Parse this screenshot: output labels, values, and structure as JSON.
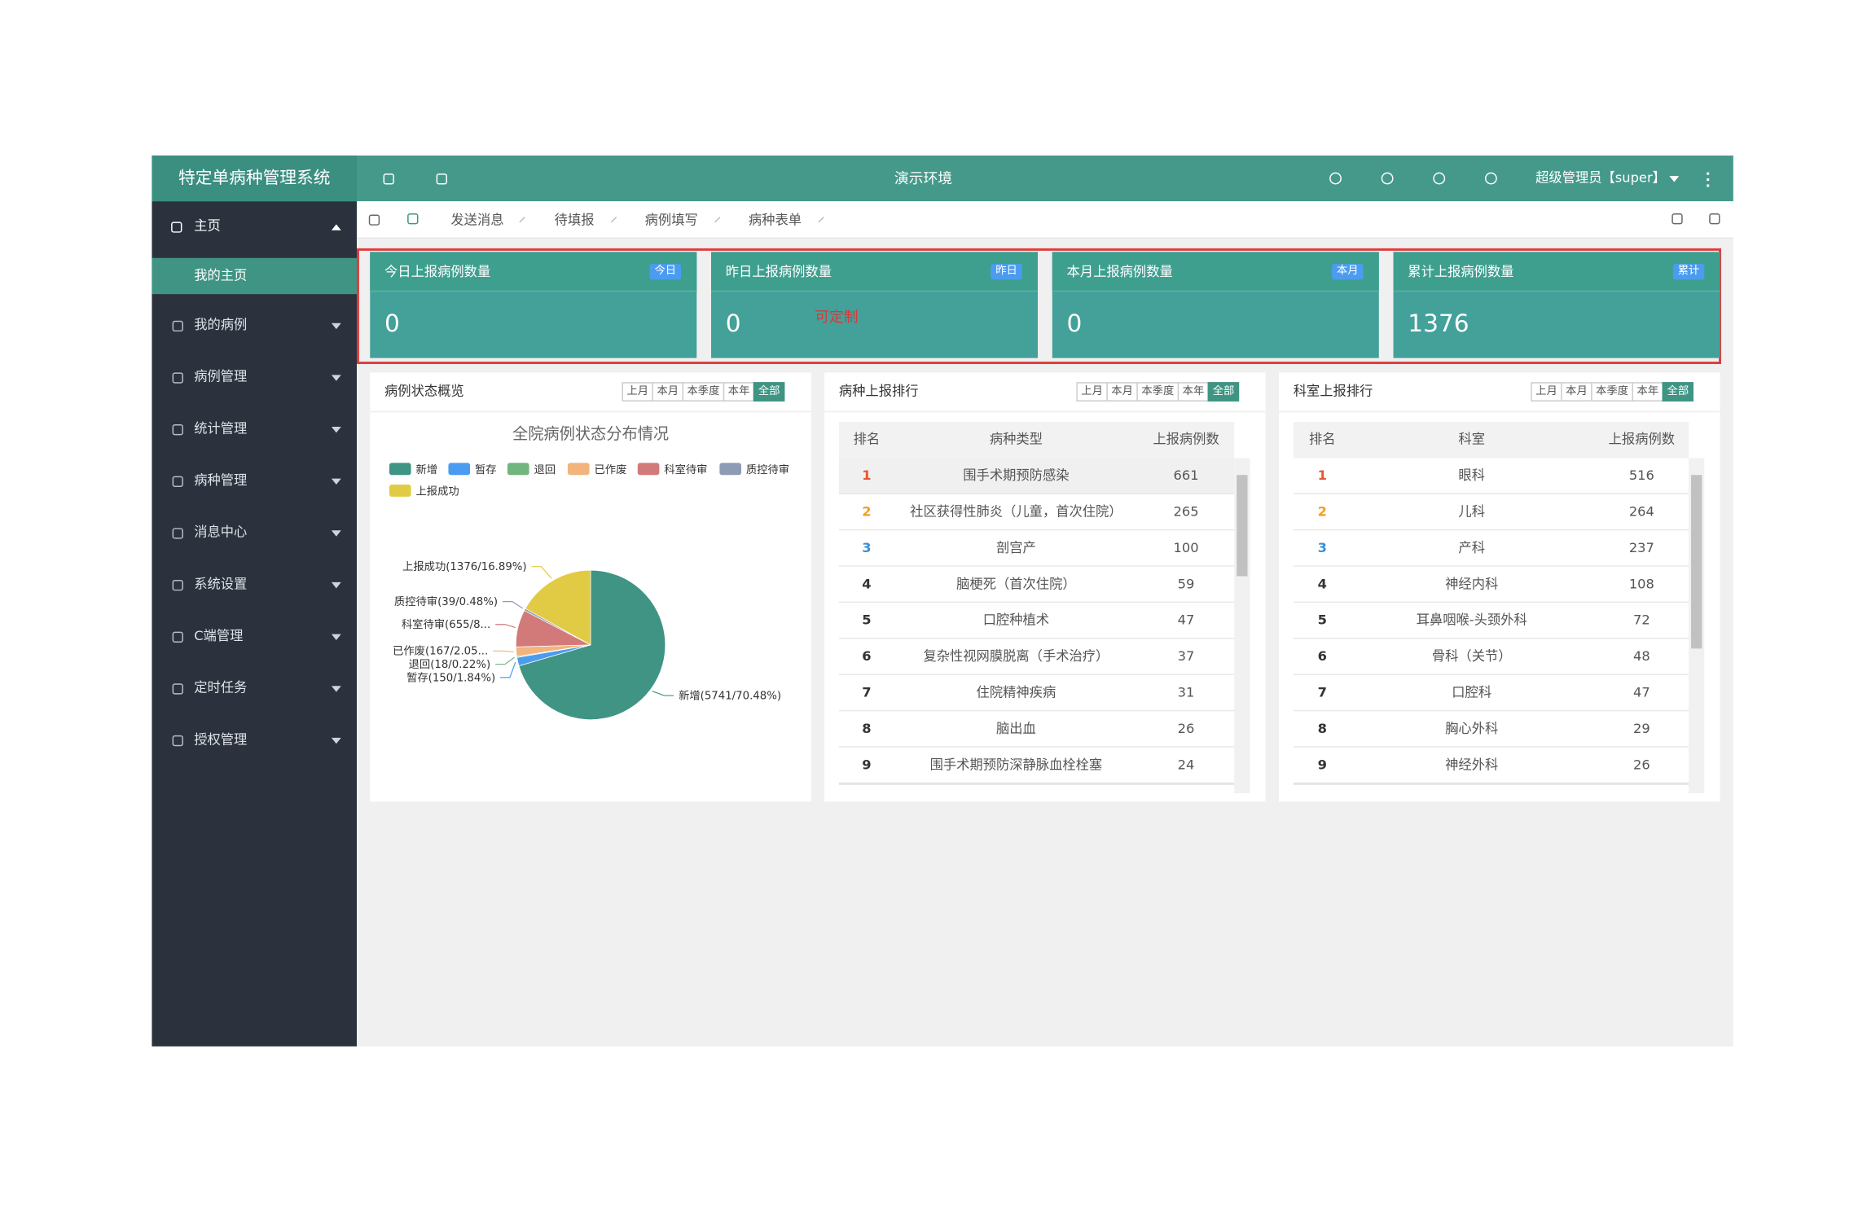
{
  "header": {
    "title": "特定单病种管理系统",
    "env": "演示环境",
    "user": "超级管理员【super】"
  },
  "sidebar": {
    "home": "主页",
    "home_children": [
      "我的主页"
    ],
    "items": [
      "我的病例",
      "病例管理",
      "统计管理",
      "病种管理",
      "消息中心",
      "系统设置",
      "C端管理",
      "定时任务",
      "授权管理"
    ]
  },
  "tabs": [
    "发送消息",
    "待填报",
    "病例填写",
    "病种表单"
  ],
  "cards": [
    {
      "title": "今日上报病例数量",
      "badge": "今日",
      "value": 0
    },
    {
      "title": "昨日上报病例数量",
      "badge": "昨日",
      "value": 0
    },
    {
      "title": "本月上报病例数量",
      "badge": "本月",
      "value": 0
    },
    {
      "title": "累计上报病例数量",
      "badge": "累计",
      "value": 1376
    }
  ],
  "annotation": "可定制",
  "filters": [
    "上月",
    "本月",
    "本季度",
    "本年",
    "全部"
  ],
  "status_panel": {
    "title": "病例状态概览",
    "chart": {
      "type": "pie",
      "title": "全院病例状态分布情况",
      "names": [
        "新增",
        "暂存",
        "退回",
        "已作废",
        "科室待审",
        "质控待审",
        "上报成功"
      ],
      "values": [
        5741,
        150,
        18,
        167,
        655,
        39,
        1376
      ],
      "value_labels": [
        "新增(5741/70.48%)",
        "暂存(150/1.84%)",
        "退回(18/0.22%)",
        "已作废(167/2.05...",
        "科室待审(655/8...",
        "质控待审(39/0.48%)",
        "上报成功(1376/16.89%)"
      ],
      "colors": [
        "#3f9483",
        "#4b9cf0",
        "#72b57e",
        "#f2b47c",
        "#d27a7a",
        "#8e9bb5",
        "#e2cb44"
      ]
    }
  },
  "disease_rank": {
    "title": "病种上报排行",
    "columns": [
      "排名",
      "病种类型",
      "上报病例数"
    ],
    "rows": [
      [
        1,
        "围手术期预防感染",
        661
      ],
      [
        2,
        "社区获得性肺炎（儿童，首次住院）",
        265
      ],
      [
        3,
        "剖宫产",
        100
      ],
      [
        4,
        "脑梗死（首次住院）",
        59
      ],
      [
        5,
        "口腔种植术",
        47
      ],
      [
        6,
        "复杂性视网膜脱离（手术治疗）",
        37
      ],
      [
        7,
        "住院精神疾病",
        31
      ],
      [
        8,
        "脑出血",
        26
      ],
      [
        9,
        "围手术期预防深静脉血栓栓塞",
        24
      ]
    ]
  },
  "dept_rank": {
    "title": "科室上报排行",
    "columns": [
      "排名",
      "科室",
      "上报病例数"
    ],
    "rows": [
      [
        1,
        "眼科",
        516
      ],
      [
        2,
        "儿科",
        264
      ],
      [
        3,
        "产科",
        237
      ],
      [
        4,
        "神经内科",
        108
      ],
      [
        5,
        "耳鼻咽喉-头颈外科",
        72
      ],
      [
        6,
        "骨科（关节）",
        48
      ],
      [
        7,
        "口腔科",
        47
      ],
      [
        8,
        "胸心外科",
        29
      ],
      [
        9,
        "神经外科",
        26
      ]
    ]
  }
}
